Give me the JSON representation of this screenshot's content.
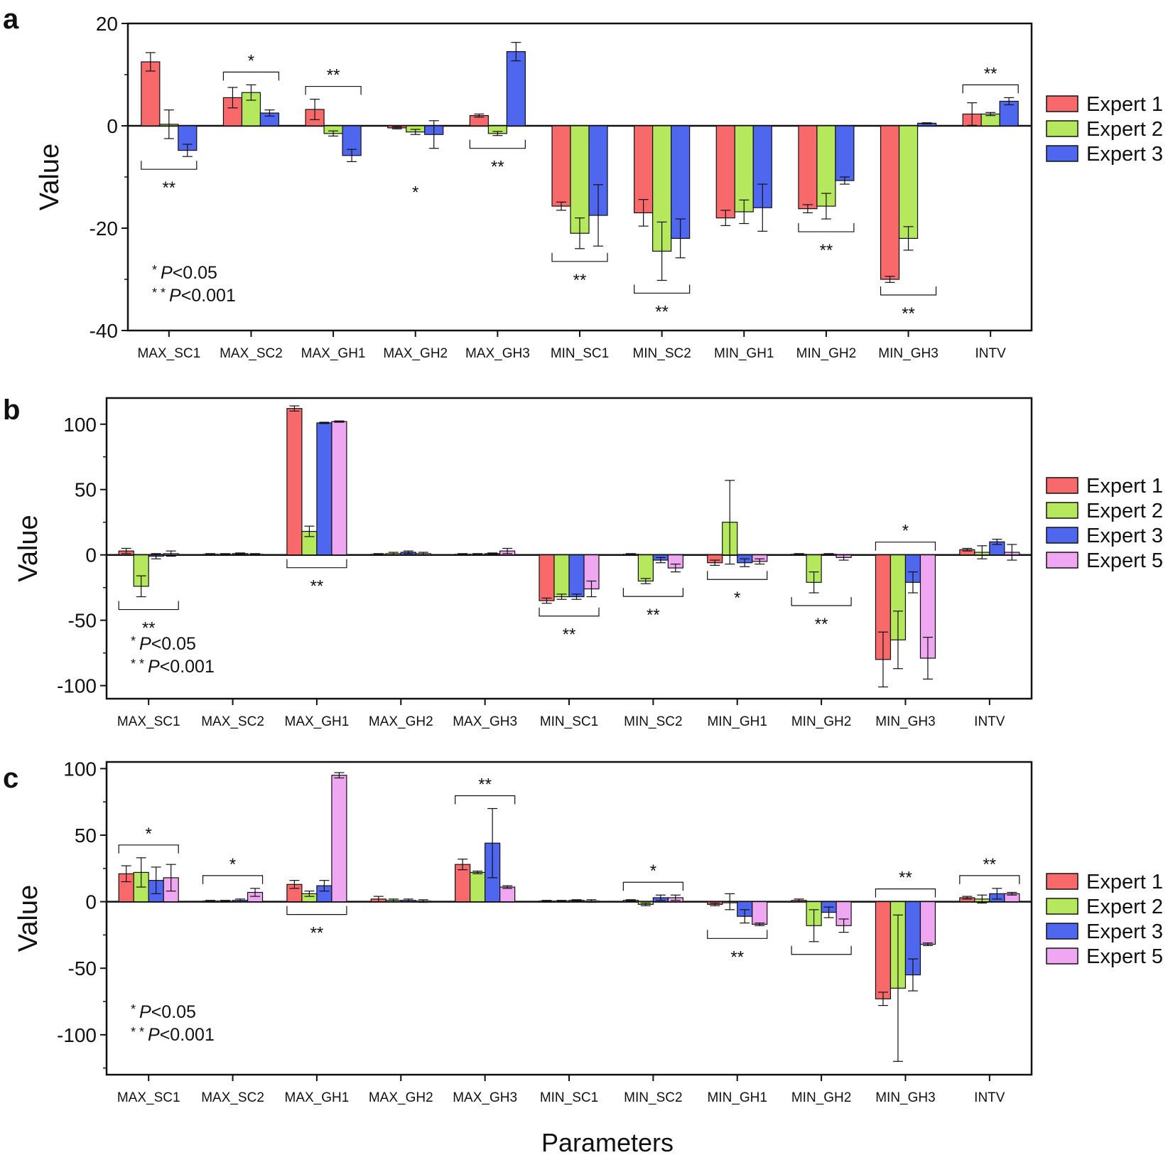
{
  "colors": {
    "Expert 1": "#F8696B",
    "Expert 2": "#B5E85C",
    "Expert 3": "#4F67EE",
    "Expert 5": "#EFA7F2"
  },
  "x_axis_label": "Parameters",
  "chart_data": [
    {
      "type": "bar",
      "panel": "a",
      "ylabel": "Value",
      "xlabel": "",
      "ylim": [
        -40,
        20
      ],
      "yticks": [
        "20",
        "0",
        "-20",
        "-40"
      ],
      "categories": [
        "MAX_SC1",
        "MAX_SC2",
        "MAX_GH1",
        "MAX_GH2",
        "MAX_GH3",
        "MIN_SC1",
        "MIN_SC2",
        "MIN_GH1",
        "MIN_GH2",
        "MIN_GH3",
        "INTV"
      ],
      "legend": [
        "Expert 1",
        "Expert 2",
        "Expert 3"
      ],
      "legend_placement": "right",
      "series": [
        {
          "name": "Expert 1",
          "values": [
            12.5,
            5.5,
            3.2,
            -0.4,
            2.0,
            -15.7,
            -17.0,
            -18.0,
            -16.2,
            -30.0,
            2.3
          ],
          "errors": [
            1.8,
            2.0,
            2.0,
            0.2,
            0.3,
            0.8,
            2.6,
            1.5,
            0.8,
            0.6,
            2.2
          ]
        },
        {
          "name": "Expert 2",
          "values": [
            0.3,
            6.5,
            -1.5,
            -1.2,
            -1.5,
            -21.0,
            -24.5,
            -16.8,
            -15.7,
            -22.0,
            2.3
          ],
          "errors": [
            2.8,
            1.5,
            0.5,
            0.5,
            0.4,
            3.0,
            5.7,
            2.3,
            2.5,
            2.3,
            0.3
          ]
        },
        {
          "name": "Expert 3",
          "values": [
            -4.8,
            2.5,
            -5.8,
            -1.7,
            14.5,
            -17.5,
            -22.0,
            -16.0,
            -10.7,
            0.5,
            4.8
          ],
          "errors": [
            1.2,
            0.6,
            1.2,
            2.7,
            1.8,
            6.0,
            3.8,
            4.6,
            0.7,
            0.1,
            0.7
          ]
        }
      ],
      "annotations": [
        {
          "category": "MAX_SC1",
          "text": "**",
          "bracket": "below"
        },
        {
          "category": "MAX_SC2",
          "text": "*",
          "bracket": "above"
        },
        {
          "category": "MAX_GH1",
          "text": "**",
          "bracket": "above"
        },
        {
          "category": "MAX_GH2",
          "text": "*",
          "bracket": "none"
        },
        {
          "category": "MAX_GH3",
          "text": "**",
          "bracket": "below"
        },
        {
          "category": "MIN_SC1",
          "text": "**",
          "bracket": "below"
        },
        {
          "category": "MIN_SC2",
          "text": "**",
          "bracket": "below"
        },
        {
          "category": "MIN_GH2",
          "text": "**",
          "bracket": "below"
        },
        {
          "category": "MIN_GH3",
          "text": "**",
          "bracket": "below"
        },
        {
          "category": "INTV",
          "text": "**",
          "bracket": "above"
        }
      ],
      "p_legend": [
        {
          "stars": "*",
          "p": "P",
          "rest": "<0.05"
        },
        {
          "stars": "* *",
          "p": "P",
          "rest": "<0.001"
        }
      ]
    },
    {
      "type": "bar",
      "panel": "b",
      "ylabel": "Value",
      "xlabel": "",
      "ylim": [
        -110,
        120
      ],
      "yticks": [
        "100",
        "50",
        "0",
        "-50",
        "-100"
      ],
      "categories": [
        "MAX_SC1",
        "MAX_SC2",
        "MAX_GH1",
        "MAX_GH2",
        "MAX_GH3",
        "MIN_SC1",
        "MIN_SC2",
        "MIN_GH1",
        "MIN_GH2",
        "MIN_GH3",
        "INTV"
      ],
      "legend": [
        "Expert 1",
        "Expert 2",
        "Expert 3",
        "Expert 5"
      ],
      "legend_placement": "right",
      "series": [
        {
          "name": "Expert 1",
          "values": [
            3,
            0.5,
            112,
            0.5,
            0.5,
            -35,
            0.5,
            -6,
            0.5,
            -80,
            4
          ],
          "errors": [
            2,
            0.5,
            2,
            0.5,
            0.5,
            2,
            0.5,
            2,
            0.5,
            21,
            1
          ]
        },
        {
          "name": "Expert 2",
          "values": [
            -24,
            0.5,
            18,
            1,
            0.5,
            -32,
            -20,
            25,
            -21,
            -65,
            2
          ],
          "errors": [
            8,
            0.5,
            4,
            1,
            0.5,
            2,
            2,
            32,
            8,
            22,
            5
          ]
        },
        {
          "name": "Expert 3",
          "values": [
            -1,
            1,
            101,
            2,
            1,
            -32,
            -4,
            -6,
            0.5,
            -21,
            10
          ],
          "errors": [
            2,
            0.5,
            0.5,
            1,
            0.5,
            2,
            2,
            3,
            0.5,
            8,
            2
          ]
        },
        {
          "name": "Expert 5",
          "values": [
            1,
            0.5,
            102,
            1,
            3,
            -26,
            -10,
            -5,
            -2,
            -79,
            2
          ],
          "errors": [
            2,
            0.5,
            0.5,
            1,
            2,
            6,
            3,
            2,
            2,
            16,
            6
          ]
        }
      ],
      "annotations": [
        {
          "category": "MAX_SC1",
          "text": "**",
          "bracket": "below"
        },
        {
          "category": "MAX_GH1",
          "text": "**",
          "bracket": "below"
        },
        {
          "category": "MIN_SC1",
          "text": "**",
          "bracket": "below"
        },
        {
          "category": "MIN_SC2",
          "text": "**",
          "bracket": "below"
        },
        {
          "category": "MIN_GH1",
          "text": "*",
          "bracket": "below"
        },
        {
          "category": "MIN_GH2",
          "text": "**",
          "bracket": "below"
        },
        {
          "category": "MIN_GH3",
          "text": "*",
          "bracket": "above"
        }
      ],
      "p_legend": [
        {
          "stars": "*",
          "p": "P",
          "rest": "<0.05"
        },
        {
          "stars": "* *",
          "p": "P",
          "rest": "<0.001"
        }
      ]
    },
    {
      "type": "bar",
      "panel": "c",
      "ylabel": "Value",
      "xlabel": "",
      "ylim": [
        -130,
        105
      ],
      "yticks": [
        "100",
        "50",
        "0",
        "-50",
        "-100"
      ],
      "categories": [
        "MAX_SC1",
        "MAX_SC2",
        "MAX_GH1",
        "MAX_GH2",
        "MAX_GH3",
        "MIN_SC1",
        "MIN_SC2",
        "MIN_GH1",
        "MIN_GH2",
        "MIN_GH3",
        "INTV"
      ],
      "legend": [
        "Expert 1",
        "Expert 2",
        "Expert 3",
        "Expert 5"
      ],
      "legend_placement": "right",
      "series": [
        {
          "name": "Expert 1",
          "values": [
            21,
            0.5,
            13,
            2,
            28,
            0.5,
            1,
            -2,
            1,
            -73,
            3
          ],
          "errors": [
            6,
            0.5,
            3,
            2,
            4,
            0.5,
            0.5,
            1,
            1,
            5,
            1
          ]
        },
        {
          "name": "Expert 2",
          "values": [
            22,
            0.5,
            6,
            1,
            22,
            0.5,
            -2,
            0,
            -18,
            -65,
            2
          ],
          "errors": [
            11,
            0.5,
            2,
            1,
            1,
            0.5,
            1,
            6,
            12,
            55,
            3
          ]
        },
        {
          "name": "Expert 3",
          "values": [
            16,
            1,
            12,
            1,
            44,
            1,
            3,
            -11,
            -8,
            -55,
            6
          ],
          "errors": [
            10,
            1,
            4,
            1,
            26,
            0.5,
            2,
            5,
            4,
            12,
            4
          ]
        },
        {
          "name": "Expert 5",
          "values": [
            18,
            7,
            95,
            0.5,
            11,
            0.5,
            3,
            -17,
            -18,
            -32,
            6
          ],
          "errors": [
            10,
            3,
            2,
            1,
            1,
            1,
            2,
            1,
            5,
            1,
            1
          ]
        }
      ],
      "annotations": [
        {
          "category": "MAX_SC1",
          "text": "*",
          "bracket": "above"
        },
        {
          "category": "MAX_SC2",
          "text": "*",
          "bracket": "above"
        },
        {
          "category": "MAX_GH1",
          "text": "**",
          "bracket": "below"
        },
        {
          "category": "MAX_GH3",
          "text": "**",
          "bracket": "above"
        },
        {
          "category": "MIN_SC2",
          "text": "*",
          "bracket": "above"
        },
        {
          "category": "MIN_GH1",
          "text": "**",
          "bracket": "below"
        },
        {
          "category": "MIN_GH2",
          "text": "",
          "bracket": "below"
        },
        {
          "category": "MIN_GH3",
          "text": "**",
          "bracket": "above"
        },
        {
          "category": "INTV",
          "text": "**",
          "bracket": "above"
        }
      ],
      "p_legend": [
        {
          "stars": "*",
          "p": "P",
          "rest": "<0.05"
        },
        {
          "stars": "* *",
          "p": "P",
          "rest": "<0.001"
        }
      ]
    }
  ]
}
